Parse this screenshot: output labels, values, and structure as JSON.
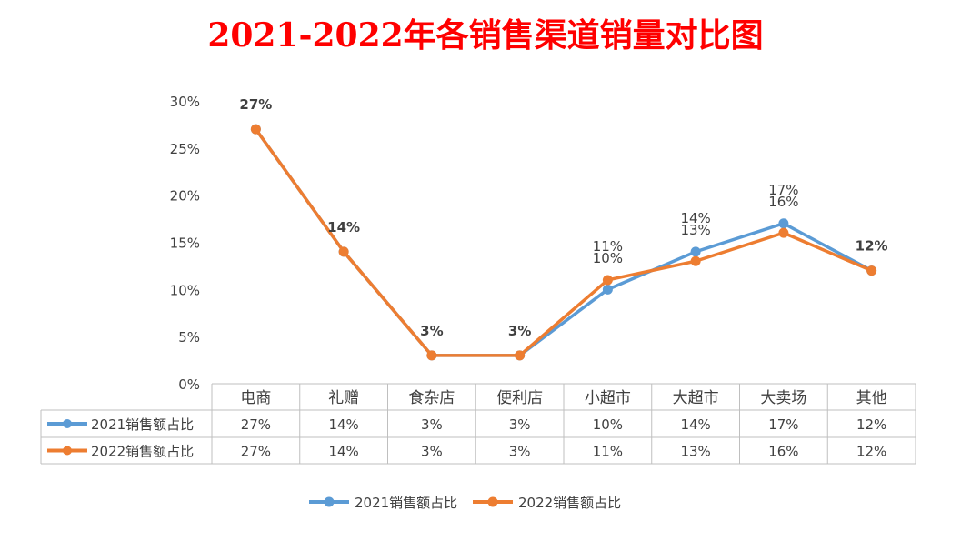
{
  "chart_data": {
    "type": "line",
    "title": "2021-2022年各销售渠道销量对比图",
    "categories": [
      "电商",
      "礼赠",
      "食杂店",
      "便利店",
      "小超市",
      "大超市",
      "大卖场",
      "其他"
    ],
    "series": [
      {
        "name": "2021销售额占比",
        "color": "#5b9bd5",
        "values": [
          27,
          14,
          3,
          3,
          10,
          14,
          17,
          12
        ],
        "labels": [
          "27%",
          "14%",
          "3%",
          "3%",
          "10%",
          "14%",
          "17%",
          "12%"
        ]
      },
      {
        "name": "2022销售额占比",
        "color": "#ed7d31",
        "values": [
          27,
          14,
          3,
          3,
          11,
          13,
          16,
          12
        ],
        "labels": [
          "27%",
          "14%",
          "3%",
          "3%",
          "11%",
          "13%",
          "16%",
          "12%"
        ]
      }
    ],
    "yticks": [
      "0%",
      "5%",
      "10%",
      "15%",
      "20%",
      "25%",
      "30%"
    ],
    "ylim": [
      0,
      30
    ],
    "data_table": true,
    "legend_position": "bottom"
  }
}
